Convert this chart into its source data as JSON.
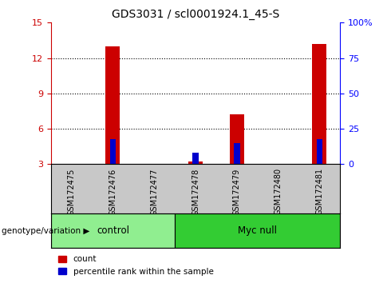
{
  "title": "GDS3031 / scl0001924.1_45-S",
  "samples": [
    "GSM172475",
    "GSM172476",
    "GSM172477",
    "GSM172478",
    "GSM172479",
    "GSM172480",
    "GSM172481"
  ],
  "count_values": [
    3.0,
    13.0,
    3.0,
    3.2,
    7.2,
    3.0,
    13.2
  ],
  "percentile_values": [
    3.0,
    5.1,
    3.0,
    4.0,
    4.8,
    3.0,
    5.1
  ],
  "groups": [
    {
      "label": "control",
      "start": 0,
      "end": 3,
      "color": "#90EE90"
    },
    {
      "label": "Myc null",
      "start": 3,
      "end": 7,
      "color": "#33CC33"
    }
  ],
  "ylim_left": [
    3,
    15
  ],
  "ylim_right": [
    0,
    100
  ],
  "yticks_left": [
    3,
    6,
    9,
    12,
    15
  ],
  "yticks_right": [
    0,
    25,
    50,
    75,
    100
  ],
  "ytick_labels_right": [
    "0",
    "25",
    "50",
    "75",
    "100%"
  ],
  "bar_color_red": "#CC0000",
  "bar_color_blue": "#0000CC",
  "background_color": "#ffffff",
  "genotype_label": "genotype/variation",
  "legend_count": "count",
  "legend_percentile": "percentile rank within the sample",
  "left_axis_color": "#CC0000",
  "right_axis_color": "#0000FF",
  "label_bg_color": "#C8C8C8",
  "grid_yticks": [
    6,
    9,
    12
  ]
}
